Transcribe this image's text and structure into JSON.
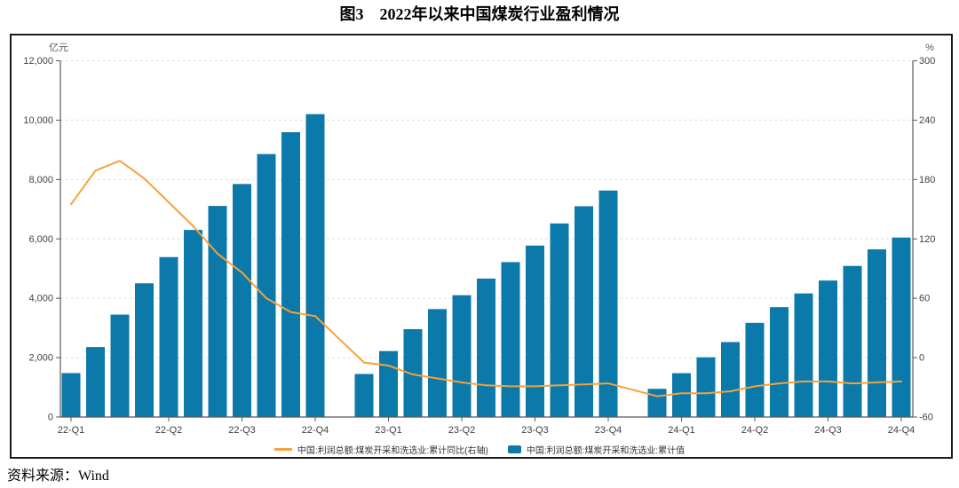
{
  "title": "图3　2022年以来中国煤炭行业盈利情况",
  "source": "资料来源：Wind",
  "colors": {
    "bar": "#0b79a9",
    "line": "#f6a13c",
    "grid": "#dedede",
    "axis": "#595959",
    "tick_text": "#404040",
    "frame": "#1a1a1a"
  },
  "left_axis": {
    "unit": "亿元",
    "min": 0,
    "max": 12000,
    "tick_labels": [
      "0",
      "2,000",
      "4,000",
      "6,000",
      "8,000",
      "10,000",
      "12,000"
    ]
  },
  "right_axis": {
    "unit": "%",
    "min": -60,
    "max": 300,
    "tick_labels": [
      "-60",
      "0",
      "60",
      "120",
      "180",
      "240",
      "300"
    ]
  },
  "legend": [
    {
      "type": "line",
      "label": "中国:利润总额:煤炭开采和洗选业:累计同比(右轴)",
      "color": "#f6a13c"
    },
    {
      "type": "bar",
      "label": "中国:利润总额:煤炭开采和洗选业:累计值",
      "color": "#0b79a9"
    }
  ],
  "chart_data": {
    "type": "bar+line",
    "title": "图3 2022年以来中国煤炭行业盈利情况",
    "bar_series": "中国:利润总额:煤炭开采和洗选业:累计值",
    "line_series": "中国:利润总额:煤炭开采和洗选业:累计同比(右轴)",
    "bar_axis": "left 亿元",
    "line_axis": "right %",
    "ylim_left": [
      0,
      12000
    ],
    "ylim_right": [
      -60,
      300
    ],
    "grid": true,
    "legend_position": "bottom",
    "note": "monthly cumulative values; no data for January slots (2023-01, 2024-01 left empty on x axis)",
    "points": [
      {
        "month": "2022-02",
        "bar": 1480,
        "line": 155
      },
      {
        "month": "2022-03",
        "bar": 2357,
        "line": 189
      },
      {
        "month": "2022-04",
        "bar": 3450,
        "line": 199
      },
      {
        "month": "2022-05",
        "bar": 4505,
        "line": 181
      },
      {
        "month": "2022-06",
        "bar": 5388,
        "line": 157
      },
      {
        "month": "2022-07",
        "bar": 6302,
        "line": 133
      },
      {
        "month": "2022-08",
        "bar": 7110,
        "line": 105
      },
      {
        "month": "2022-09",
        "bar": 7849,
        "line": 86
      },
      {
        "month": "2022-10",
        "bar": 8858,
        "line": 60
      },
      {
        "month": "2022-11",
        "bar": 9594,
        "line": 46
      },
      {
        "month": "2022-12",
        "bar": 10202,
        "line": 42
      },
      {
        "month": "2023-02",
        "bar": 1450,
        "line": -5
      },
      {
        "month": "2023-03",
        "bar": 2222,
        "line": -8
      },
      {
        "month": "2023-04",
        "bar": 2959,
        "line": -17
      },
      {
        "month": "2023-05",
        "bar": 3636,
        "line": -21
      },
      {
        "month": "2023-06",
        "bar": 4103,
        "line": -25
      },
      {
        "month": "2023-07",
        "bar": 4663,
        "line": -28
      },
      {
        "month": "2023-08",
        "bar": 5218,
        "line": -29
      },
      {
        "month": "2023-09",
        "bar": 5775,
        "line": -29
      },
      {
        "month": "2023-10",
        "bar": 6520,
        "line": -28
      },
      {
        "month": "2023-11",
        "bar": 7100,
        "line": -27
      },
      {
        "month": "2023-12",
        "bar": 7629,
        "line": -26
      },
      {
        "month": "2024-02",
        "bar": 950,
        "line": -39
      },
      {
        "month": "2024-03",
        "bar": 1476,
        "line": -36
      },
      {
        "month": "2024-04",
        "bar": 2011,
        "line": -36
      },
      {
        "month": "2024-05",
        "bar": 2525,
        "line": -34
      },
      {
        "month": "2024-06",
        "bar": 3173,
        "line": -29
      },
      {
        "month": "2024-07",
        "bar": 3701,
        "line": -26
      },
      {
        "month": "2024-08",
        "bar": 4163,
        "line": -24
      },
      {
        "month": "2024-09",
        "bar": 4597,
        "line": -24
      },
      {
        "month": "2024-10",
        "bar": 5089,
        "line": -26
      },
      {
        "month": "2024-11",
        "bar": 5648,
        "line": -25
      },
      {
        "month": "2024-12",
        "bar": 6046,
        "line": -24
      }
    ],
    "x_ticks": [
      {
        "month": "2022-02",
        "label": "22-Q1"
      },
      {
        "month": "2022-06",
        "label": "22-Q2"
      },
      {
        "month": "2022-09",
        "label": "22-Q3"
      },
      {
        "month": "2022-12",
        "label": "22-Q4"
      },
      {
        "month": "2023-03",
        "label": "23-Q1"
      },
      {
        "month": "2023-06",
        "label": "23-Q2"
      },
      {
        "month": "2023-09",
        "label": "23-Q3"
      },
      {
        "month": "2023-12",
        "label": "23-Q4"
      },
      {
        "month": "2024-03",
        "label": "24-Q1"
      },
      {
        "month": "2024-06",
        "label": "24-Q2"
      },
      {
        "month": "2024-09",
        "label": "24-Q3"
      },
      {
        "month": "2024-12",
        "label": "24-Q4"
      }
    ]
  }
}
